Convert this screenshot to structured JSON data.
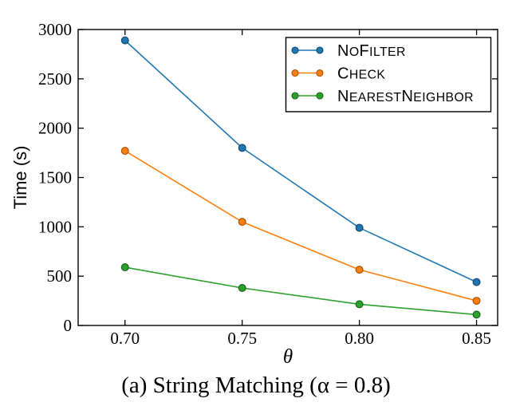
{
  "figure": {
    "caption": "(a) String Matching (α = 0.8)"
  },
  "chart_data": {
    "type": "line",
    "title": "",
    "xlabel": "θ",
    "ylabel": "Time (s)",
    "x": [
      0.7,
      0.75,
      0.8,
      0.85
    ],
    "xtick_labels": [
      "0.70",
      "0.75",
      "0.80",
      "0.85"
    ],
    "yticks": [
      0,
      500,
      1000,
      1500,
      2000,
      2500,
      3000
    ],
    "xlim": [
      0.68,
      0.859
    ],
    "ylim": [
      0,
      3000
    ],
    "grid": false,
    "legend_position": "upper right",
    "marker": "circle",
    "axis_color": "#000000",
    "series": [
      {
        "name": "NoFilter",
        "values": [
          2890,
          1800,
          990,
          440
        ],
        "color": "#1f77b4",
        "marker_edge": "#12486f"
      },
      {
        "name": "Check",
        "values": [
          1770,
          1050,
          565,
          250
        ],
        "color": "#ff7f0e",
        "marker_edge": "#a65102"
      },
      {
        "name": "NearestNeighbor",
        "values": [
          590,
          380,
          215,
          110
        ],
        "color": "#2ca02c",
        "marker_edge": "#1a661a"
      }
    ]
  }
}
